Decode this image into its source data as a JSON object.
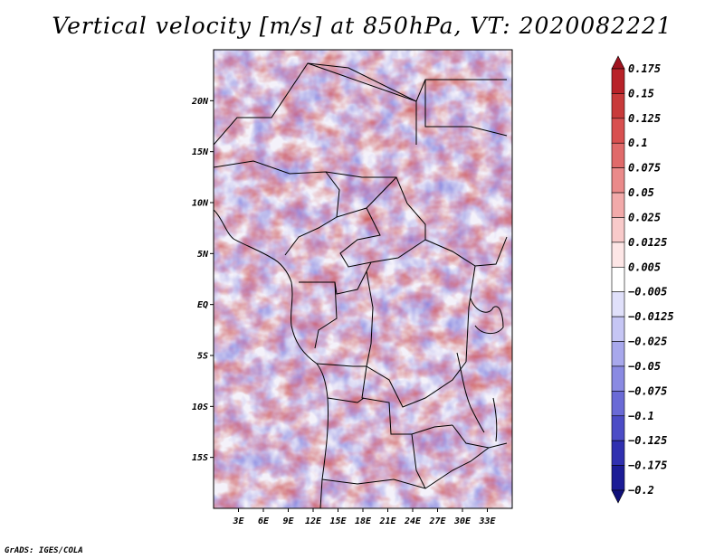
{
  "title": "Vertical velocity [m/s] at 850hPa, VT: 2020082221",
  "credit": "GrADS: IGES/COLA",
  "map": {
    "lat_range": [
      -20,
      25
    ],
    "lon_range": [
      0,
      36
    ],
    "lat_ticks": [
      "20N",
      "15N",
      "10N",
      "5N",
      "EQ",
      "5S",
      "10S",
      "15S"
    ],
    "lon_ticks": [
      "3E",
      "6E",
      "9E",
      "12E",
      "15E",
      "18E",
      "21E",
      "24E",
      "27E",
      "30E",
      "33E"
    ]
  },
  "colorbar": {
    "labels": [
      "0.175",
      "0.15",
      "0.125",
      "0.1",
      "0.075",
      "0.05",
      "0.025",
      "0.0125",
      "0.005",
      "−0.005",
      "−0.0125",
      "−0.025",
      "−0.05",
      "−0.075",
      "−0.1",
      "−0.125",
      "−0.175",
      "−0.2"
    ],
    "colors": [
      "#a01420",
      "#b82228",
      "#c83a3a",
      "#d85050",
      "#e06a6a",
      "#ea8a8a",
      "#f2aaaa",
      "#f8caca",
      "#fde6e6",
      "#ffffff",
      "#e0e0fa",
      "#c6c6f4",
      "#a8a8ec",
      "#8a8ae2",
      "#6a6ad6",
      "#4c4cc6",
      "#3030b0",
      "#1c1c96",
      "#10107a"
    ]
  }
}
